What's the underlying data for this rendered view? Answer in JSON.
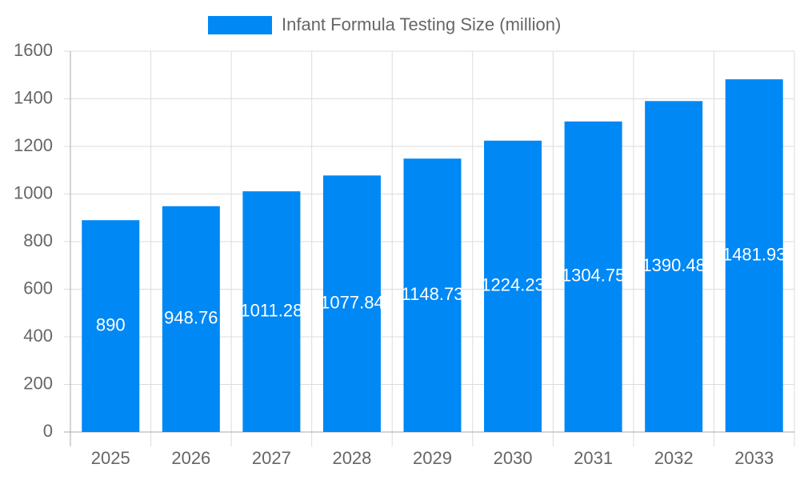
{
  "chart_data": {
    "type": "bar",
    "categories": [
      "2025",
      "2026",
      "2027",
      "2028",
      "2029",
      "2030",
      "2031",
      "2032",
      "2033"
    ],
    "series": [
      {
        "name": "Infant Formula Testing Size (million)",
        "color": "#0088f5",
        "values": [
          890,
          948.76,
          1011.28,
          1077.84,
          1148.73,
          1224.23,
          1304.75,
          1390.48,
          1481.93
        ]
      }
    ],
    "ylim": [
      0,
      1600
    ],
    "yticks": [
      0,
      200,
      400,
      600,
      800,
      1000,
      1200,
      1400,
      1600
    ],
    "grid": true,
    "legend": "top",
    "data_labels": true
  }
}
